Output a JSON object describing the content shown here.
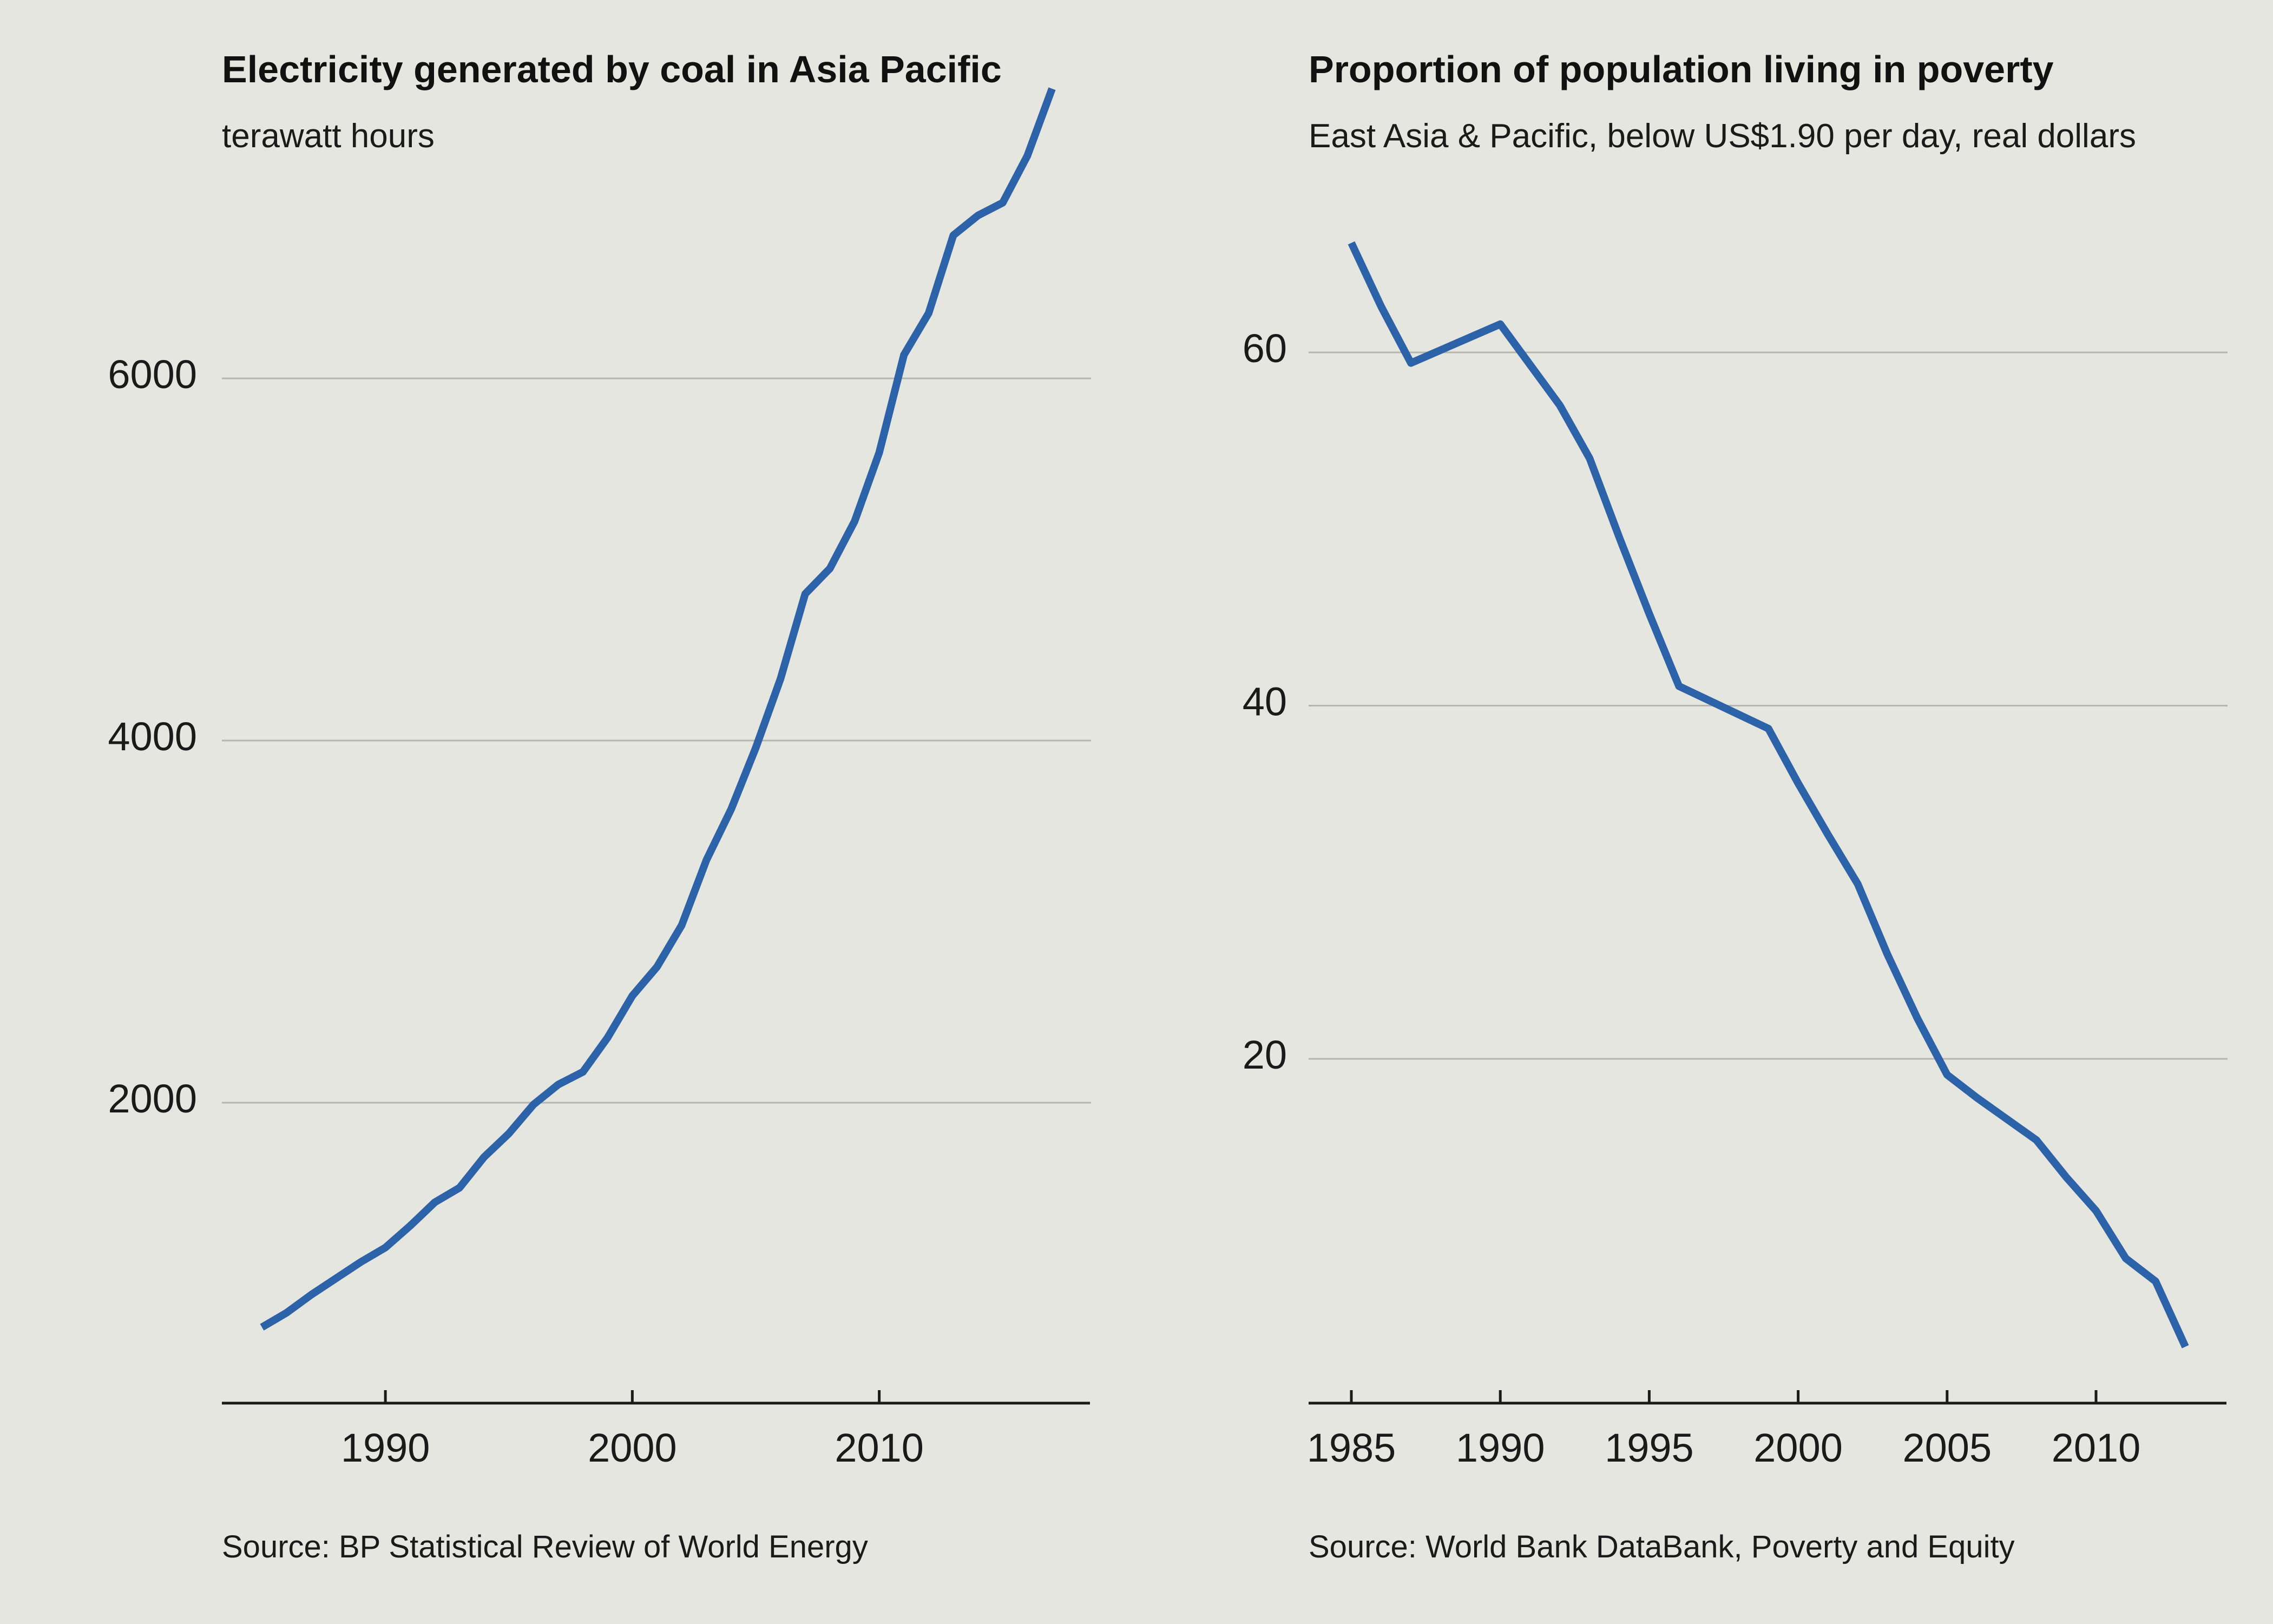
{
  "chart_data": [
    {
      "type": "line",
      "title": "Electricity generated by coal in Asia Pacific",
      "subtitle": "terawatt hours",
      "source": "Source: BP Statistical Review of World Energy",
      "xlabel": "",
      "ylabel": "",
      "xlim": [
        1983.5,
        2018.5
      ],
      "ylim": [
        450,
        7000
      ],
      "x_ticks": [
        1990,
        2000,
        2010
      ],
      "y_ticks": [
        2000,
        4000,
        6000
      ],
      "grid": "horizontal",
      "series": [
        {
          "color": "#2b62a8",
          "x": [
            1985,
            1986,
            1987,
            1988,
            1989,
            1990,
            1991,
            1992,
            1993,
            1994,
            1995,
            1996,
            1997,
            1998,
            1999,
            2000,
            2001,
            2002,
            2003,
            2004,
            2005,
            2006,
            2007,
            2008,
            2009,
            2010,
            2011,
            2012,
            2013,
            2014,
            2015,
            2016,
            2017
          ],
          "y": [
            760,
            840,
            940,
            1030,
            1120,
            1200,
            1320,
            1450,
            1530,
            1700,
            1830,
            1990,
            2100,
            2170,
            2360,
            2590,
            2750,
            2980,
            3340,
            3620,
            3960,
            4340,
            4810,
            4950,
            5210,
            5590,
            6130,
            6360,
            6790,
            6900,
            6970,
            7230,
            7600
          ]
        }
      ]
    },
    {
      "type": "line",
      "title": "Proportion of population living in poverty",
      "subtitle": "East Asia & Pacific, below US$1.90 per day, real dollars",
      "source": "Source: World Bank DataBank, Poverty and Equity",
      "xlabel": "",
      "ylabel": "",
      "xlim": [
        1983.5,
        2014.5
      ],
      "ylim": [
        0,
        70
      ],
      "x_ticks": [
        1985,
        1990,
        1995,
        2000,
        2005,
        2010
      ],
      "y_ticks": [
        20,
        40,
        60
      ],
      "grid": "horizontal",
      "series": [
        {
          "color": "#2b62a8",
          "x": [
            1985,
            1986,
            1987,
            1990,
            1992,
            1993,
            1994,
            1995,
            1996,
            1999,
            2000,
            2001,
            2002,
            2003,
            2004,
            2005,
            2006,
            2008,
            2009,
            2010,
            2011,
            2012,
            2013
          ],
          "y": [
            66.2,
            62.6,
            59.4,
            61.6,
            57.0,
            54.0,
            49.5,
            45.2,
            41.1,
            38.7,
            35.6,
            32.7,
            29.9,
            25.9,
            22.3,
            19.1,
            17.8,
            15.4,
            13.3,
            11.4,
            8.7,
            7.4,
            3.7
          ]
        }
      ]
    }
  ]
}
